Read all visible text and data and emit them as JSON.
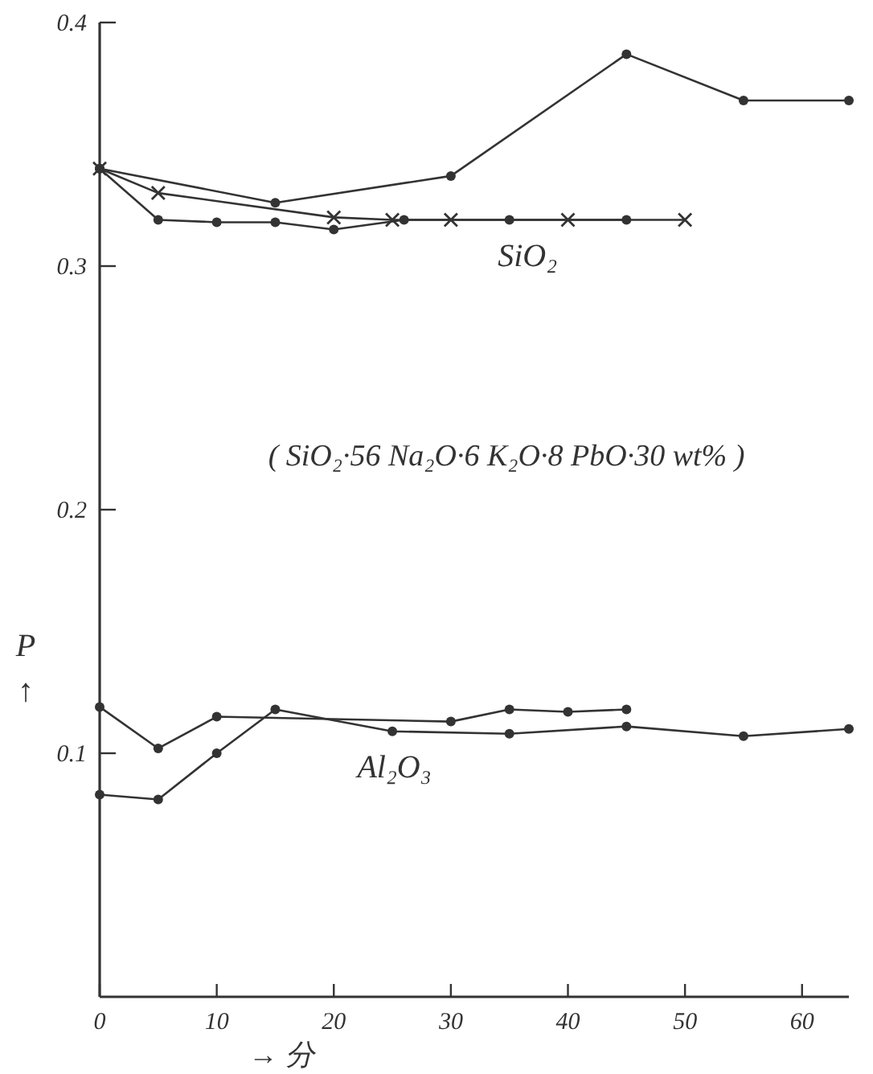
{
  "chart_data": {
    "type": "line",
    "xlabel": "→ 分",
    "ylabel": "P ↑",
    "xlim": [
      0,
      64
    ],
    "ylim": [
      0,
      0.4
    ],
    "xticks": [
      0,
      10,
      20,
      30,
      40,
      50,
      60
    ],
    "yticks": [
      0.1,
      0.2,
      0.3,
      0.4
    ],
    "grid": false,
    "line_style": "solid",
    "series": [
      {
        "color": "#333333",
        "marker": "circle",
        "x": [
          0,
          15,
          30,
          45,
          55,
          64
        ],
        "values": [
          0.34,
          0.326,
          0.337,
          0.387,
          0.368,
          0.368
        ]
      },
      {
        "color": "#333333",
        "marker": "circle",
        "x": [
          0,
          5,
          10,
          15,
          20,
          26,
          35,
          45
        ],
        "values": [
          0.34,
          0.319,
          0.318,
          0.318,
          0.315,
          0.319,
          0.319,
          0.319
        ]
      },
      {
        "color": "#333333",
        "marker": "cross",
        "x": [
          0,
          5,
          20,
          25,
          30,
          40,
          50
        ],
        "values": [
          0.34,
          0.33,
          0.32,
          0.319,
          0.319,
          0.319,
          0.319
        ]
      },
      {
        "color": "#333333",
        "marker": "circle",
        "x": [
          0,
          5,
          10,
          30,
          35,
          40,
          45
        ],
        "values": [
          0.119,
          0.102,
          0.115,
          0.113,
          0.118,
          0.117,
          0.118
        ]
      },
      {
        "color": "#333333",
        "marker": "circle",
        "x": [
          0,
          5,
          10,
          15,
          25,
          35,
          45,
          55,
          64
        ],
        "values": [
          0.083,
          0.081,
          0.1,
          0.118,
          0.109,
          0.108,
          0.111,
          0.107,
          0.11
        ]
      }
    ],
    "annotations": [
      "SiO₂",
      "Al₂O₃",
      "( SiO₂·56 Na₂O·6 K₂O·8 PbO·30 wt% )"
    ]
  }
}
